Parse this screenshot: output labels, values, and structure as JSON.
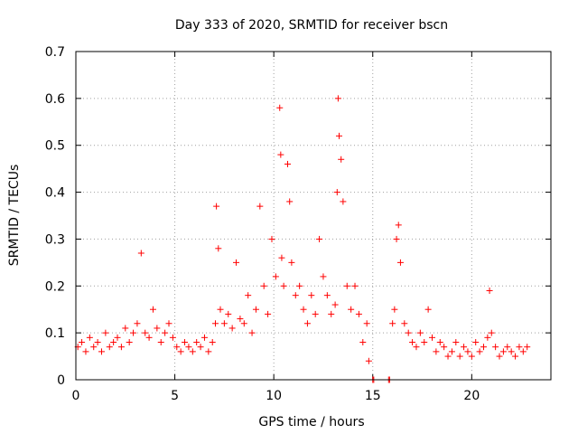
{
  "chart_data": {
    "type": "scatter",
    "title": "Day 333 of 2020, SRMTID for receiver bscn",
    "xlabel": "GPS time / hours",
    "ylabel": "SRMTID / TECUs",
    "xlim": [
      0,
      24
    ],
    "ylim": [
      0,
      0.7
    ],
    "xticks": [
      0,
      5,
      10,
      15,
      20
    ],
    "yticks": [
      0,
      0.1,
      0.2,
      0.3,
      0.4,
      0.5,
      0.6,
      0.7
    ],
    "xtick_labels": [
      "0",
      "5",
      "10",
      "15",
      "20"
    ],
    "ytick_labels": [
      "0",
      "0.1",
      "0.2",
      "0.3",
      "0.4",
      "0.5",
      "0.6",
      "0.7"
    ],
    "grid": true,
    "marker": "+",
    "marker_color": "#ff0000",
    "series": [
      {
        "name": "SRMTID",
        "x": [
          0.1,
          0.3,
          0.5,
          0.7,
          0.9,
          1.1,
          1.3,
          1.5,
          1.7,
          1.9,
          2.1,
          2.3,
          2.5,
          2.7,
          2.9,
          3.1,
          3.3,
          3.5,
          3.7,
          3.9,
          4.1,
          4.3,
          4.5,
          4.7,
          4.9,
          5.1,
          5.3,
          5.5,
          5.7,
          5.9,
          6.1,
          6.3,
          6.5,
          6.7,
          6.9,
          7.05,
          7.1,
          7.2,
          7.3,
          7.5,
          7.7,
          7.9,
          8.1,
          8.3,
          8.5,
          8.7,
          8.9,
          9.1,
          9.3,
          9.5,
          9.7,
          9.9,
          10.1,
          10.3,
          10.35,
          10.4,
          10.5,
          10.7,
          10.8,
          10.9,
          11.1,
          11.3,
          11.5,
          11.7,
          11.9,
          12.1,
          12.3,
          12.5,
          12.7,
          12.9,
          13.1,
          13.2,
          13.25,
          13.3,
          13.4,
          13.5,
          13.7,
          13.9,
          14.1,
          14.3,
          14.5,
          14.7,
          14.8,
          15.0,
          15.05,
          15.8,
          15.85,
          16.0,
          16.1,
          16.2,
          16.3,
          16.4,
          16.6,
          16.8,
          17.0,
          17.2,
          17.4,
          17.6,
          17.8,
          18.0,
          18.2,
          18.4,
          18.6,
          18.8,
          19.0,
          19.2,
          19.4,
          19.6,
          19.8,
          20.0,
          20.2,
          20.4,
          20.6,
          20.8,
          20.9,
          21.0,
          21.2,
          21.4,
          21.6,
          21.8,
          22.0,
          22.2,
          22.4,
          22.6,
          22.8
        ],
        "y": [
          0.07,
          0.08,
          0.06,
          0.09,
          0.07,
          0.08,
          0.06,
          0.1,
          0.07,
          0.08,
          0.09,
          0.07,
          0.11,
          0.08,
          0.1,
          0.12,
          0.27,
          0.1,
          0.09,
          0.15,
          0.11,
          0.08,
          0.1,
          0.12,
          0.09,
          0.07,
          0.06,
          0.08,
          0.07,
          0.06,
          0.08,
          0.07,
          0.09,
          0.06,
          0.08,
          0.12,
          0.37,
          0.28,
          0.15,
          0.12,
          0.14,
          0.11,
          0.25,
          0.13,
          0.12,
          0.18,
          0.1,
          0.15,
          0.37,
          0.2,
          0.14,
          0.3,
          0.22,
          0.58,
          0.48,
          0.26,
          0.2,
          0.46,
          0.38,
          0.25,
          0.18,
          0.2,
          0.15,
          0.12,
          0.18,
          0.14,
          0.3,
          0.22,
          0.18,
          0.14,
          0.16,
          0.4,
          0.6,
          0.52,
          0.47,
          0.38,
          0.2,
          0.15,
          0.2,
          0.14,
          0.08,
          0.12,
          0.04,
          0.0,
          0.0,
          0.0,
          0.0,
          0.12,
          0.15,
          0.3,
          0.33,
          0.25,
          0.12,
          0.1,
          0.08,
          0.07,
          0.1,
          0.08,
          0.15,
          0.09,
          0.06,
          0.08,
          0.07,
          0.05,
          0.06,
          0.08,
          0.05,
          0.07,
          0.06,
          0.05,
          0.08,
          0.06,
          0.07,
          0.09,
          0.19,
          0.1,
          0.07,
          0.05,
          0.06,
          0.07,
          0.06,
          0.05,
          0.07,
          0.06,
          0.07
        ]
      }
    ]
  }
}
